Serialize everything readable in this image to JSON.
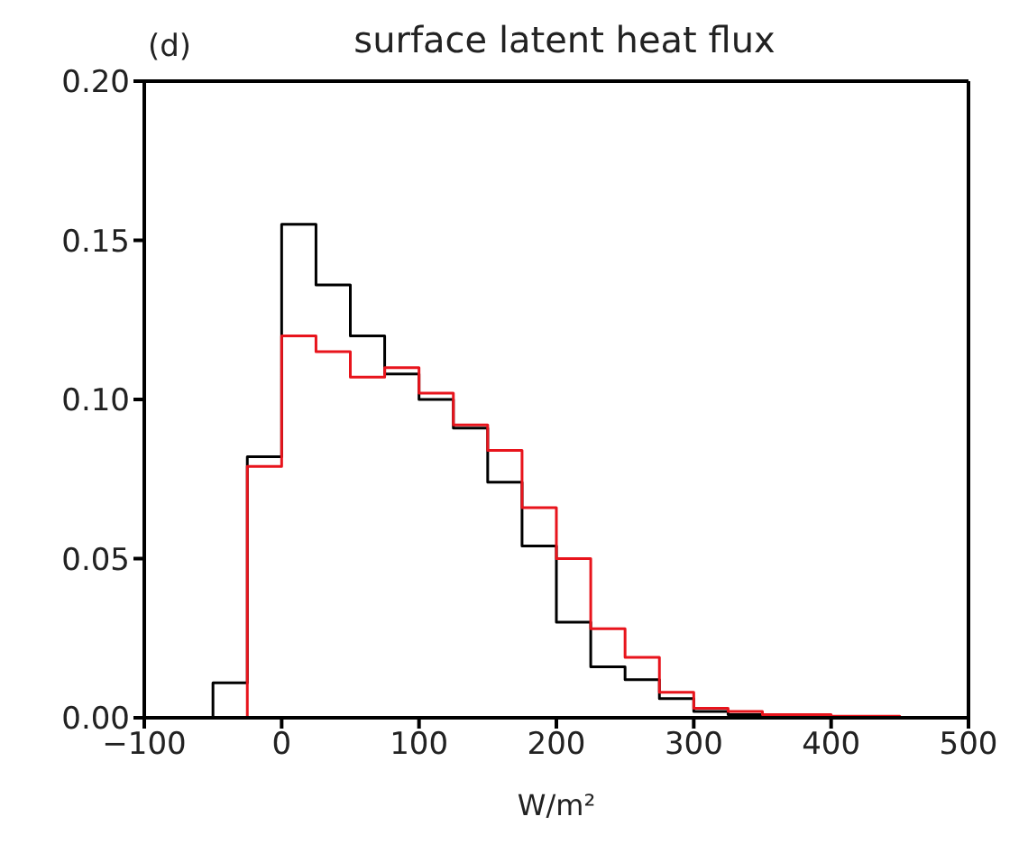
{
  "chart_data": {
    "type": "histogram",
    "title": "surface latent heat flux",
    "xlabel": "W/m²",
    "annotations": [
      "(d)"
    ],
    "bins": [
      -50,
      -25,
      0,
      25,
      50,
      75,
      100,
      125,
      150,
      175,
      200,
      225,
      250,
      275,
      300,
      325,
      350,
      375,
      400,
      425,
      450
    ],
    "series": [
      {
        "color": "#000000",
        "values": [
          0.011,
          0.082,
          0.155,
          0.136,
          0.12,
          0.108,
          0.1,
          0.091,
          0.074,
          0.054,
          0.03,
          0.016,
          0.012,
          0.006,
          0.002,
          0.001,
          0.001,
          0.0005,
          0,
          0
        ]
      },
      {
        "color": "#e8141c",
        "values": [
          0,
          0.079,
          0.12,
          0.115,
          0.107,
          0.11,
          0.102,
          0.092,
          0.084,
          0.066,
          0.05,
          0.028,
          0.019,
          0.008,
          0.003,
          0.002,
          0.001,
          0.001,
          0.0005,
          0.0005
        ]
      }
    ],
    "xlim": [
      -100,
      500
    ],
    "xticks": [
      -100,
      0,
      100,
      200,
      300,
      400,
      500
    ],
    "ylim": [
      0,
      0.2
    ],
    "yticks": [
      {
        "value": 0,
        "label": "0.00"
      },
      {
        "value": 0.05,
        "label": "0.05"
      },
      {
        "value": 0.1,
        "label": "0.10"
      },
      {
        "value": 0.15,
        "label": "0.15"
      },
      {
        "value": 0.2,
        "label": "0.20"
      }
    ],
    "grid": false
  }
}
